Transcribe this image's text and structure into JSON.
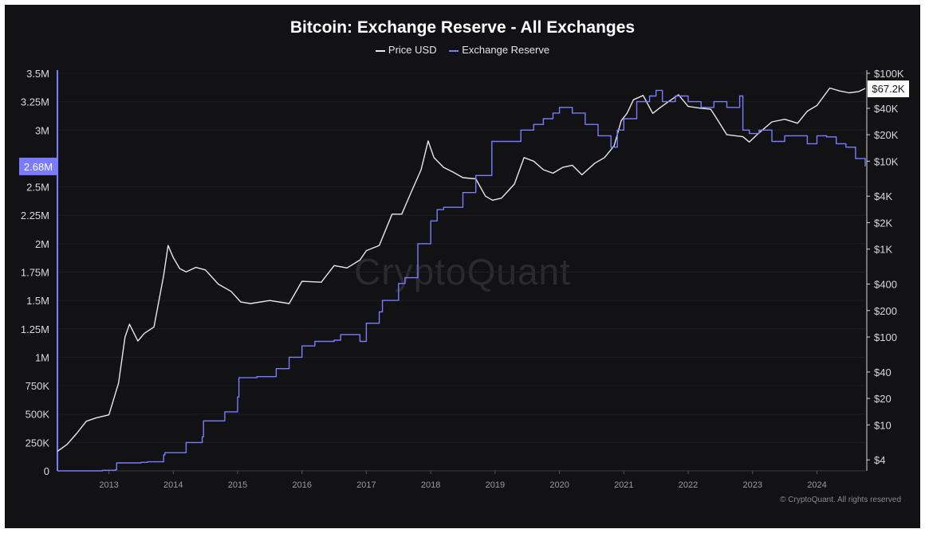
{
  "chart_data": {
    "type": "line",
    "title": "Bitcoin: Exchange Reserve - All Exchanges",
    "legend_placement": "top-center",
    "grid": true,
    "x_tick_labels": [
      "2013",
      "2014",
      "2015",
      "2016",
      "2017",
      "2018",
      "2019",
      "2020",
      "2021",
      "2022",
      "2023",
      "2024"
    ],
    "xlim": [
      2012.2,
      2024.75
    ],
    "left_axis": {
      "ylim": [
        0,
        3500000
      ],
      "tick_values": [
        0,
        250000,
        500000,
        750000,
        1000000,
        1250000,
        1500000,
        1750000,
        2000000,
        2250000,
        2500000,
        3000000,
        3250000,
        3500000
      ],
      "tick_labels": [
        "0",
        "250K",
        "500K",
        "750K",
        "1M",
        "1.25M",
        "1.5M",
        "1.75M",
        "2M",
        "2.25M",
        "2.5M",
        "3M",
        "3.25M",
        "3.5M"
      ],
      "current_value_label": "2.68M"
    },
    "right_axis": {
      "scale": "log",
      "ylim": [
        3,
        100000
      ],
      "tick_values": [
        4,
        10,
        20,
        40,
        100,
        200,
        400,
        1000,
        2000,
        4000,
        10000,
        20000,
        40000,
        100000
      ],
      "tick_labels": [
        "$4",
        "$10",
        "$20",
        "$40",
        "$100",
        "$200",
        "$400",
        "$1K",
        "$2K",
        "$4K",
        "$10K",
        "$20K",
        "$40K",
        "$100K"
      ],
      "current_value_label": "$67.2K"
    },
    "series": [
      {
        "name": "Price USD",
        "color": "#e8e8e8",
        "axis": "right",
        "x": [
          2012.2,
          2012.35,
          2012.5,
          2012.65,
          2012.8,
          2013.0,
          2013.15,
          2013.25,
          2013.32,
          2013.45,
          2013.55,
          2013.7,
          2013.85,
          2013.92,
          2014.0,
          2014.1,
          2014.2,
          2014.35,
          2014.5,
          2014.7,
          2014.9,
          2015.05,
          2015.2,
          2015.5,
          2015.8,
          2016.0,
          2016.3,
          2016.5,
          2016.7,
          2016.9,
          2017.0,
          2017.2,
          2017.4,
          2017.55,
          2017.7,
          2017.85,
          2017.96,
          2018.05,
          2018.2,
          2018.35,
          2018.5,
          2018.7,
          2018.85,
          2018.96,
          2019.1,
          2019.3,
          2019.45,
          2019.6,
          2019.75,
          2019.9,
          2020.05,
          2020.2,
          2020.35,
          2020.55,
          2020.7,
          2020.85,
          2020.96,
          2021.05,
          2021.15,
          2021.3,
          2021.45,
          2021.55,
          2021.7,
          2021.85,
          2022.0,
          2022.2,
          2022.35,
          2022.45,
          2022.6,
          2022.85,
          2022.95,
          2023.1,
          2023.3,
          2023.5,
          2023.7,
          2023.85,
          2024.0,
          2024.2,
          2024.35,
          2024.5,
          2024.65,
          2024.75
        ],
        "values": [
          5,
          6,
          8,
          11,
          12,
          13,
          30,
          100,
          140,
          90,
          110,
          130,
          500,
          1100,
          800,
          600,
          550,
          620,
          580,
          400,
          330,
          250,
          240,
          260,
          240,
          430,
          420,
          650,
          610,
          750,
          960,
          1100,
          2500,
          2500,
          4500,
          8000,
          17000,
          11000,
          8500,
          7500,
          6500,
          6300,
          4000,
          3600,
          3800,
          5500,
          11000,
          10000,
          8000,
          7300,
          8500,
          9000,
          7000,
          9500,
          11000,
          15000,
          29000,
          35000,
          50000,
          56000,
          35000,
          40000,
          48000,
          57000,
          42000,
          40000,
          39000,
          30000,
          20000,
          19000,
          16500,
          21000,
          28000,
          30000,
          27000,
          37000,
          43000,
          68000,
          63000,
          60000,
          62000,
          67200
        ]
      },
      {
        "name": "Exchange Reserve",
        "color": "#7b7bff",
        "axis": "left",
        "x": [
          2012.2,
          2012.6,
          2012.9,
          2013.1,
          2013.12,
          2013.5,
          2013.6,
          2013.85,
          2013.87,
          2014.2,
          2014.45,
          2014.47,
          2014.8,
          2015.0,
          2015.02,
          2015.3,
          2015.6,
          2015.8,
          2016.0,
          2016.2,
          2016.5,
          2016.6,
          2016.9,
          2017.0,
          2017.2,
          2017.25,
          2017.5,
          2017.6,
          2017.8,
          2018.0,
          2018.1,
          2018.2,
          2018.5,
          2018.7,
          2018.9,
          2018.95,
          2019.2,
          2019.4,
          2019.6,
          2019.75,
          2019.9,
          2020.0,
          2020.2,
          2020.4,
          2020.6,
          2020.8,
          2020.9,
          2021.0,
          2021.2,
          2021.4,
          2021.5,
          2021.6,
          2021.8,
          2022.0,
          2022.2,
          2022.4,
          2022.6,
          2022.8,
          2022.85,
          2022.95,
          2023.1,
          2023.3,
          2023.5,
          2023.7,
          2023.85,
          2024.0,
          2024.15,
          2024.3,
          2024.45,
          2024.6,
          2024.75
        ],
        "values": [
          0,
          0,
          5000,
          10000,
          70000,
          75000,
          80000,
          140000,
          160000,
          250000,
          300000,
          440000,
          520000,
          650000,
          820000,
          830000,
          900000,
          1000000,
          1100000,
          1140000,
          1150000,
          1200000,
          1140000,
          1300000,
          1400000,
          1500000,
          1650000,
          1700000,
          2000000,
          2200000,
          2300000,
          2320000,
          2450000,
          2600000,
          2600000,
          2900000,
          2900000,
          3000000,
          3050000,
          3100000,
          3150000,
          3200000,
          3150000,
          3050000,
          2950000,
          2850000,
          3000000,
          3100000,
          3250000,
          3300000,
          3350000,
          3250000,
          3300000,
          3250000,
          3200000,
          3250000,
          3200000,
          3300000,
          3000000,
          2970000,
          3000000,
          2900000,
          2950000,
          2950000,
          2880000,
          2950000,
          2940000,
          2880000,
          2850000,
          2750000,
          2680000
        ]
      }
    ]
  },
  "watermark": "CryptoQuant",
  "copyright": "© CryptoQuant. All rights reserved"
}
